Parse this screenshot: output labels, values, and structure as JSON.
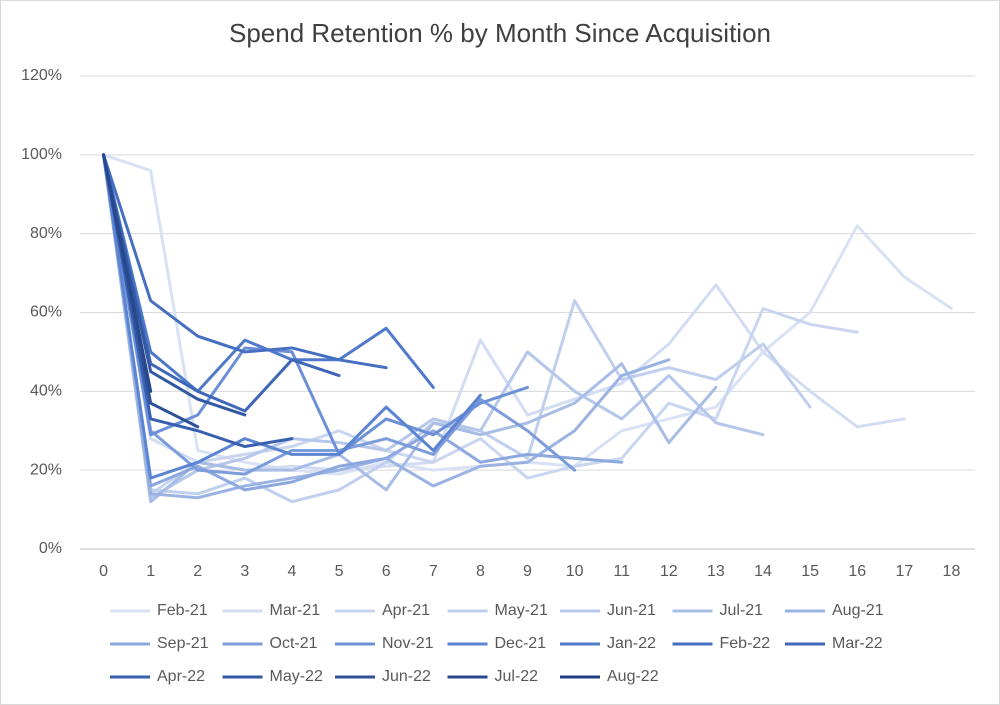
{
  "chart_data": {
    "type": "line",
    "title": "Spend Retention % by Month Since Acquisition",
    "categories": [
      "0",
      "1",
      "2",
      "3",
      "4",
      "5",
      "6",
      "7",
      "8",
      "9",
      "10",
      "11",
      "12",
      "13",
      "14",
      "15",
      "16",
      "17",
      "18"
    ],
    "ylim": [
      0,
      120
    ],
    "yticks": [
      {
        "value": 0,
        "label": "0%"
      },
      {
        "value": 20,
        "label": "20%"
      },
      {
        "value": 40,
        "label": "40%"
      },
      {
        "value": 60,
        "label": "60%"
      },
      {
        "value": 80,
        "label": "80%"
      },
      {
        "value": 100,
        "label": "100%"
      },
      {
        "value": 120,
        "label": "120%"
      }
    ],
    "grid": true,
    "legend": "bottom",
    "series": [
      {
        "name": "Feb-21",
        "color": "#d9e2f4",
        "values": [
          100,
          96,
          25,
          22,
          20,
          19,
          22,
          20,
          21,
          22,
          21,
          30,
          33,
          36,
          50,
          60,
          82,
          69,
          61
        ]
      },
      {
        "name": "Mar-21",
        "color": "#d2dcf2",
        "values": [
          100,
          28,
          22,
          20,
          21,
          20,
          21,
          22,
          53,
          34,
          38,
          42,
          52,
          67,
          50,
          40,
          31,
          33,
          null
        ]
      },
      {
        "name": "Apr-21",
        "color": "#cad6f0",
        "values": [
          100,
          14,
          22,
          24,
          26,
          30,
          25,
          22,
          28,
          18,
          21,
          23,
          37,
          33,
          61,
          57,
          55,
          null,
          null
        ]
      },
      {
        "name": "May-21",
        "color": "#c0cfed",
        "values": [
          100,
          15,
          14,
          18,
          12,
          15,
          22,
          32,
          30,
          23,
          63,
          43,
          46,
          43,
          52,
          36,
          null,
          null,
          null
        ]
      },
      {
        "name": "Jun-21",
        "color": "#b5c7ea",
        "values": [
          100,
          13,
          20,
          23,
          28,
          27,
          25,
          33,
          30,
          50,
          40,
          33,
          44,
          32,
          29,
          null,
          null,
          null,
          null
        ]
      },
      {
        "name": "Jul-21",
        "color": "#a8bde6",
        "values": [
          100,
          12,
          22,
          20,
          20,
          24,
          15,
          32,
          29,
          32,
          37,
          47,
          27,
          41,
          null,
          null,
          null,
          null,
          null
        ]
      },
      {
        "name": "Aug-21",
        "color": "#9bb3e3",
        "values": [
          100,
          14,
          13,
          16,
          18,
          20,
          23,
          16,
          21,
          22,
          30,
          44,
          48,
          null,
          null,
          null,
          null,
          null,
          null
        ]
      },
      {
        "name": "Sep-21",
        "color": "#8ca8df",
        "values": [
          100,
          16,
          21,
          15,
          17,
          21,
          23,
          30,
          22,
          24,
          23,
          22,
          null,
          null,
          null,
          null,
          null,
          null,
          null
        ]
      },
      {
        "name": "Oct-21",
        "color": "#7c9cdb",
        "values": [
          100,
          30,
          20,
          19,
          25,
          25,
          28,
          24,
          38,
          30,
          20,
          null,
          null,
          null,
          null,
          null,
          null,
          null,
          null
        ]
      },
      {
        "name": "Nov-21",
        "color": "#6b90d7",
        "values": [
          100,
          29,
          34,
          51,
          50,
          24,
          33,
          29,
          37,
          41,
          null,
          null,
          null,
          null,
          null,
          null,
          null,
          null,
          null
        ]
      },
      {
        "name": "Dec-21",
        "color": "#5b84d2",
        "values": [
          100,
          18,
          22,
          28,
          24,
          24,
          36,
          25,
          39,
          null,
          null,
          null,
          null,
          null,
          null,
          null,
          null,
          null,
          null
        ]
      },
      {
        "name": "Jan-22",
        "color": "#4f79cb",
        "values": [
          100,
          50,
          40,
          53,
          48,
          48,
          56,
          41,
          null,
          null,
          null,
          null,
          null,
          null,
          null,
          null,
          null,
          null,
          null
        ]
      },
      {
        "name": "Feb-22",
        "color": "#466fc2",
        "values": [
          100,
          63,
          54,
          50,
          51,
          48,
          46,
          null,
          null,
          null,
          null,
          null,
          null,
          null,
          null,
          null,
          null,
          null,
          null
        ]
      },
      {
        "name": "Mar-22",
        "color": "#3f67b8",
        "values": [
          100,
          47,
          40,
          35,
          48,
          44,
          null,
          null,
          null,
          null,
          null,
          null,
          null,
          null,
          null,
          null,
          null,
          null,
          null
        ]
      },
      {
        "name": "Apr-22",
        "color": "#3960ae",
        "values": [
          100,
          33,
          30,
          26,
          28,
          null,
          null,
          null,
          null,
          null,
          null,
          null,
          null,
          null,
          null,
          null,
          null,
          null,
          null
        ]
      },
      {
        "name": "May-22",
        "color": "#3358a3",
        "values": [
          100,
          45,
          38,
          34,
          null,
          null,
          null,
          null,
          null,
          null,
          null,
          null,
          null,
          null,
          null,
          null,
          null,
          null,
          null
        ]
      },
      {
        "name": "Jun-22",
        "color": "#2d5098",
        "values": [
          100,
          37,
          31,
          null,
          null,
          null,
          null,
          null,
          null,
          null,
          null,
          null,
          null,
          null,
          null,
          null,
          null,
          null,
          null
        ]
      },
      {
        "name": "Jul-22",
        "color": "#27488d",
        "values": [
          100,
          40,
          null,
          null,
          null,
          null,
          null,
          null,
          null,
          null,
          null,
          null,
          null,
          null,
          null,
          null,
          null,
          null,
          null
        ]
      },
      {
        "name": "Aug-22",
        "color": "#213f82",
        "values": [
          100,
          null,
          null,
          null,
          null,
          null,
          null,
          null,
          null,
          null,
          null,
          null,
          null,
          null,
          null,
          null,
          null,
          null,
          null
        ]
      }
    ]
  }
}
